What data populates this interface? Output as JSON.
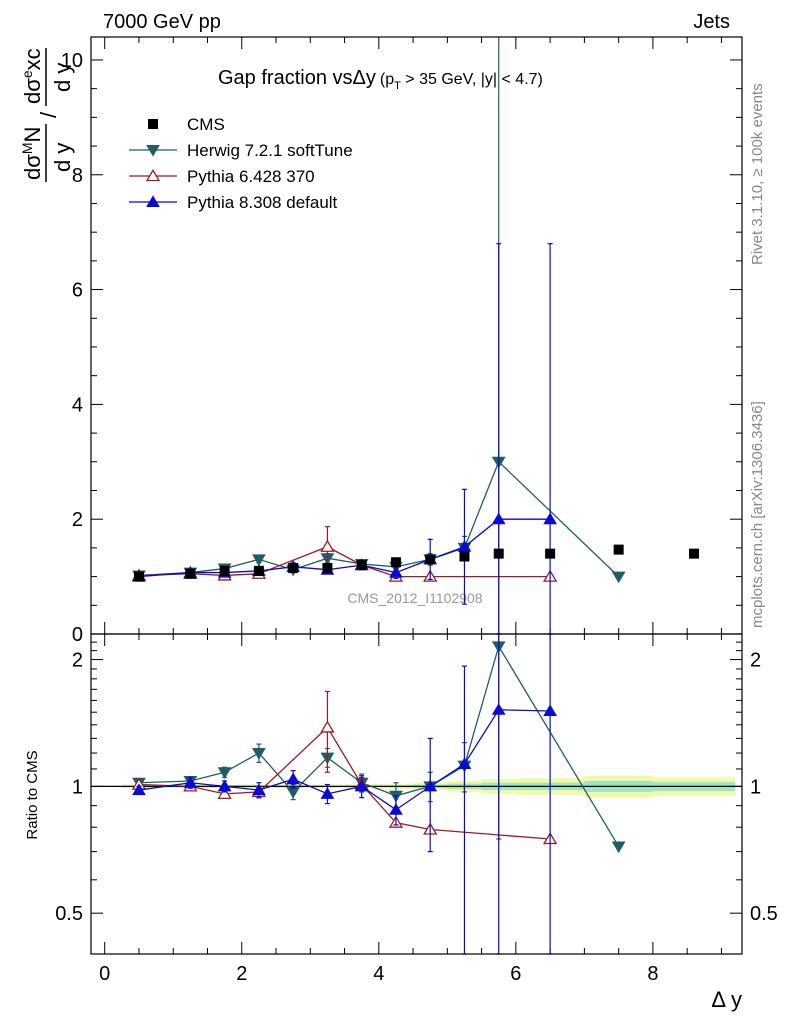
{
  "header": {
    "energy_label": "7000 GeV pp",
    "process_label": "Jets"
  },
  "side_labels": {
    "rivet": "Rivet 3.1.10, ≥ 100k events",
    "mcplots": "mcplots.cern.ch [arXiv:1306.3436]"
  },
  "watermark": "CMS_2012_I1102908",
  "chart_data": {
    "type": "line",
    "title": "Gap fraction vsΔy (p_T > 35 GeV, |y| < 4.7)",
    "title_main": "Gap fraction vsΔy",
    "title_paren_open": "(p",
    "title_sub": "T",
    "title_paren_rest": " > 35 GeV, |y| < 4.7)",
    "xlabel": "Δ y",
    "ylabel_parts": {
      "outer_num": "dσ",
      "outer_num_sup": "M",
      "outer_num_tail": "N",
      "outer_den": "d y",
      "slash": "/",
      "inner_num": "dσ",
      "inner_num_sup": "e",
      "inner_num_tail": "xc",
      "inner_den": "d y"
    },
    "ratio_ylabel": "Ratio to CMS",
    "xlim": [
      -0.2,
      9.3
    ],
    "ylim": [
      0,
      10.4
    ],
    "ratio_ylim": [
      0.4,
      2.3
    ],
    "x_ticks": [
      0,
      2,
      4,
      6,
      8
    ],
    "x_tick_labels": [
      "0",
      "2",
      "4",
      "6",
      "8"
    ],
    "y_ticks": [
      0,
      2,
      4,
      6,
      8,
      10
    ],
    "y_tick_labels": [
      "0",
      "2",
      "4",
      "6",
      "8",
      "10"
    ],
    "ratio_ticks": [
      0.5,
      1,
      2
    ],
    "ratio_tick_labels": [
      "0.5",
      "1",
      "2"
    ],
    "legend_position": "top-left",
    "reference": {
      "name": "CMS",
      "x": [
        0.5,
        1.25,
        1.75,
        2.25,
        2.75,
        3.25,
        3.75,
        4.25,
        4.75,
        5.25,
        5.75,
        6.5,
        7.5,
        8.6
      ],
      "y": [
        1.0,
        1.05,
        1.1,
        1.1,
        1.15,
        1.15,
        1.2,
        1.25,
        1.3,
        1.35,
        1.4,
        1.4,
        1.47,
        1.4
      ],
      "band_x": [
        [
          0.25,
          1.0
        ],
        [
          1.0,
          1.5
        ],
        [
          1.5,
          2.0
        ],
        [
          2.0,
          2.5
        ],
        [
          2.5,
          3.0
        ],
        [
          3.0,
          3.5
        ],
        [
          3.5,
          4.0
        ],
        [
          4.0,
          4.5
        ],
        [
          4.5,
          5.0
        ],
        [
          5.0,
          5.5
        ],
        [
          5.5,
          6.0
        ],
        [
          6.0,
          7.0
        ],
        [
          7.0,
          8.0
        ],
        [
          8.0,
          9.2
        ]
      ],
      "band_inner": [
        0.005,
        0.005,
        0.005,
        0.005,
        0.005,
        0.005,
        0.005,
        0.005,
        0.01,
        0.015,
        0.02,
        0.02,
        0.03,
        0.025
      ],
      "band_outer": [
        0.01,
        0.01,
        0.01,
        0.01,
        0.01,
        0.01,
        0.012,
        0.015,
        0.02,
        0.03,
        0.04,
        0.045,
        0.06,
        0.05
      ],
      "color": "#000000"
    },
    "series": [
      {
        "name": "Herwig 7.2.1 softTune",
        "color": "#1f5f64",
        "marker": "triangle-down-filled",
        "x": [
          0.5,
          1.25,
          1.75,
          2.25,
          2.75,
          3.25,
          3.75,
          4.25,
          4.75,
          5.25,
          5.75,
          7.5
        ],
        "y": [
          1.02,
          1.07,
          1.14,
          1.3,
          1.12,
          1.32,
          1.22,
          1.17,
          1.3,
          1.5,
          3.0,
          1.0
        ],
        "err": [
          0.03,
          0.03,
          0.04,
          0.06,
          0.05,
          0.08,
          0.07,
          0.08,
          0.1,
          0.2,
          8.5,
          0.0
        ],
        "ratio": [
          1.02,
          1.03,
          1.08,
          1.2,
          0.97,
          1.17,
          1.02,
          0.95,
          1.0,
          1.12,
          2.15,
          0.72
        ],
        "ratio_err": [
          0.02,
          0.02,
          0.03,
          0.06,
          0.04,
          0.06,
          0.05,
          0.07,
          0.08,
          0.15,
          1.4,
          0.0
        ]
      },
      {
        "name": "Pythia 6.428 370",
        "color": "#9b1b2b",
        "marker": "triangle-up-open",
        "x": [
          0.5,
          1.25,
          1.75,
          2.25,
          3.25,
          3.75,
          4.25,
          4.75,
          6.5
        ],
        "y": [
          1.02,
          1.05,
          1.02,
          1.05,
          1.52,
          1.2,
          1.0,
          1.0,
          1.0
        ],
        "err": [
          0.02,
          0.02,
          0.02,
          0.03,
          0.35,
          0.05,
          0.0,
          0.0,
          0.0
        ],
        "ratio": [
          1.01,
          1.0,
          0.96,
          0.97,
          1.38,
          1.01,
          0.82,
          0.79,
          0.75
        ],
        "ratio_err": [
          0.02,
          0.02,
          0.02,
          0.03,
          0.3,
          0.04,
          0.0,
          0.0,
          0.0
        ]
      },
      {
        "name": "Pythia 8.308 default",
        "color": "#0a0ad2",
        "marker": "triangle-up-filled",
        "x": [
          0.5,
          1.25,
          1.75,
          2.25,
          2.75,
          3.25,
          3.75,
          4.25,
          4.75,
          5.25,
          5.75,
          6.5
        ],
        "y": [
          1.0,
          1.07,
          1.07,
          1.1,
          1.17,
          1.12,
          1.2,
          1.07,
          1.3,
          1.52,
          2.0,
          2.0
        ],
        "err": [
          0.02,
          0.03,
          0.04,
          0.05,
          0.07,
          0.06,
          0.08,
          0.1,
          0.35,
          1.0,
          4.8,
          4.8
        ],
        "ratio": [
          0.98,
          1.02,
          1.0,
          0.98,
          1.04,
          0.96,
          1.0,
          0.88,
          1.0,
          1.13,
          1.52,
          1.51
        ],
        "ratio_err": [
          0.02,
          0.03,
          0.03,
          0.04,
          0.05,
          0.05,
          0.06,
          0.07,
          0.3,
          0.8,
          1.8,
          1.8
        ]
      }
    ]
  },
  "colors": {
    "band_inner": "#9be8c8",
    "band_outer": "#f4f9a6",
    "ratio_line": "#000000",
    "watermark": "#999999",
    "side_text": "#888888"
  }
}
